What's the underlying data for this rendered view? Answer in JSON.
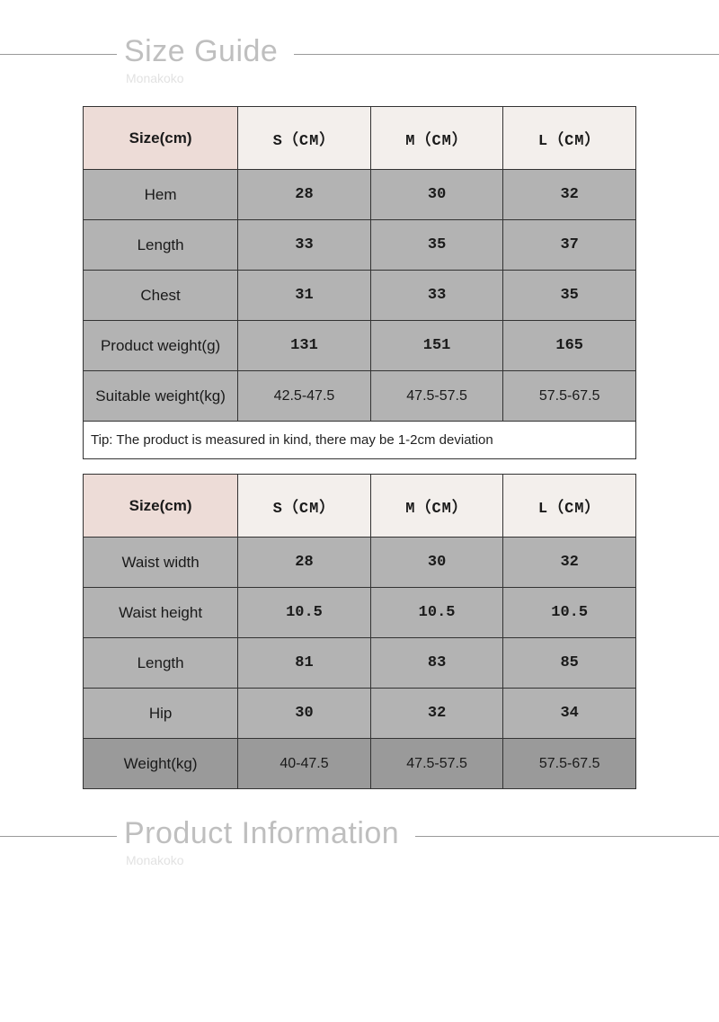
{
  "section1": {
    "title": "Size Guide",
    "subtitle": "Monakoko"
  },
  "section2": {
    "title": "Product Information",
    "subtitle": "Monakoko"
  },
  "table1": {
    "headers": [
      "Size(cm)",
      "S（CM）",
      "M（CM）",
      "L（CM）"
    ],
    "rows": [
      {
        "label": "Hem",
        "s": "28",
        "m": "30",
        "l": "32",
        "bold": true
      },
      {
        "label": "Length",
        "s": "33",
        "m": "35",
        "l": "37",
        "bold": true
      },
      {
        "label": "Chest",
        "s": "31",
        "m": "33",
        "l": "35",
        "bold": true
      },
      {
        "label": "Product weight(g)",
        "s": "131",
        "m": "151",
        "l": "165",
        "bold": true
      },
      {
        "label": "Suitable weight(kg)",
        "s": "42.5-47.5",
        "m": "47.5-57.5",
        "l": "57.5-67.5",
        "bold": false
      }
    ],
    "tip": "Tip: The product is measured in kind, there may be 1-2cm deviation"
  },
  "table2": {
    "headers": [
      "Size(cm)",
      "S（CM）",
      "M（CM）",
      "L（CM）"
    ],
    "rows": [
      {
        "label": "Waist width",
        "s": "28",
        "m": "30",
        "l": "32",
        "bold": true,
        "dark": false
      },
      {
        "label": "Waist height",
        "s": "10.5",
        "m": "10.5",
        "l": "10.5",
        "bold": true,
        "dark": false
      },
      {
        "label": "Length",
        "s": "81",
        "m": "83",
        "l": "85",
        "bold": true,
        "dark": false
      },
      {
        "label": "Hip",
        "s": "30",
        "m": "32",
        "l": "34",
        "bold": true,
        "dark": false
      },
      {
        "label": "Weight(kg)",
        "s": "40-47.5",
        "m": "47.5-57.5",
        "l": "57.5-67.5",
        "bold": false,
        "dark": true
      }
    ]
  },
  "colors": {
    "header_label_bg": "#eddcd7",
    "header_size_bg": "#f3efec",
    "row_bg": "#b3b3b3",
    "row_dark_bg": "#9a9a9a",
    "border": "#333333",
    "title_color": "#bfbfbf",
    "subtitle_color": "#e2e2e2",
    "divider": "#9a9a9a"
  }
}
